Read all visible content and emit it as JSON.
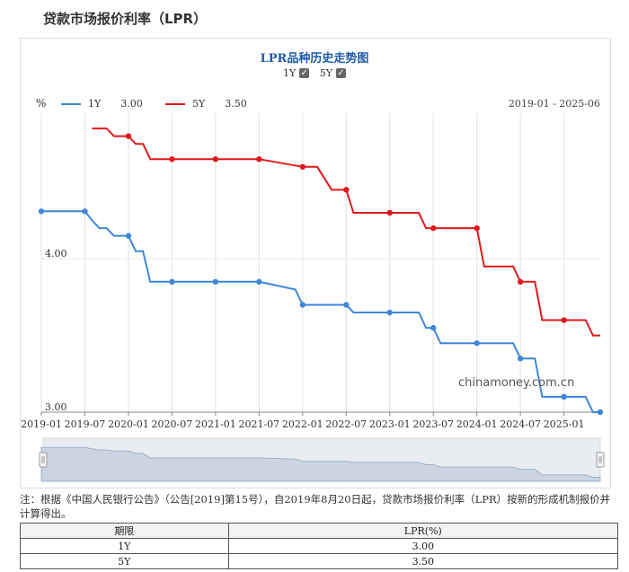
{
  "page": {
    "title": "贷款市场报价利率（LPR）"
  },
  "chart": {
    "title": "LPR品种历史走势图",
    "toggles": [
      {
        "label": "1Y",
        "checked": true
      },
      {
        "label": "5Y",
        "checked": true
      }
    ],
    "unit_label": "%",
    "date_range": "2019-01 - 2025-06",
    "legend": [
      {
        "label": "1Y",
        "value": "3.00",
        "color": "#3f87d6"
      },
      {
        "label": "5Y",
        "value": "3.50",
        "color": "#e0181c"
      }
    ],
    "watermark": "chinamoney.com.cn"
  },
  "chart_data": {
    "type": "line",
    "title": "LPR品种历史走势图",
    "xlabel": "",
    "ylabel": "%",
    "x_ticks": [
      "2019-01",
      "2019-07",
      "2020-01",
      "2020-07",
      "2021-01",
      "2021-07",
      "2022-01",
      "2022-07",
      "2023-01",
      "2023-07",
      "2024-01",
      "2024-07",
      "2025-01"
    ],
    "y_ticks": [
      "3.00",
      "4.00"
    ],
    "ylim": [
      3.0,
      4.95
    ],
    "xlim": [
      "2019-01",
      "2025-06"
    ],
    "grid": "vertical",
    "series": [
      {
        "name": "1Y",
        "color": "#3f87d6",
        "points": [
          [
            "2019-01",
            4.31
          ],
          [
            "2019-07",
            4.31
          ],
          [
            "2019-08",
            4.25
          ],
          [
            "2019-09",
            4.2
          ],
          [
            "2019-10",
            4.2
          ],
          [
            "2019-11",
            4.15
          ],
          [
            "2019-12",
            4.15
          ],
          [
            "2020-01",
            4.15
          ],
          [
            "2020-02",
            4.05
          ],
          [
            "2020-03",
            4.05
          ],
          [
            "2020-04",
            3.85
          ],
          [
            "2020-07",
            3.85
          ],
          [
            "2021-01",
            3.85
          ],
          [
            "2021-07",
            3.85
          ],
          [
            "2021-12",
            3.8
          ],
          [
            "2022-01",
            3.7
          ],
          [
            "2022-07",
            3.7
          ],
          [
            "2022-08",
            3.65
          ],
          [
            "2023-01",
            3.65
          ],
          [
            "2023-05",
            3.65
          ],
          [
            "2023-06",
            3.55
          ],
          [
            "2023-07",
            3.55
          ],
          [
            "2023-08",
            3.45
          ],
          [
            "2024-01",
            3.45
          ],
          [
            "2024-06",
            3.45
          ],
          [
            "2024-07",
            3.35
          ],
          [
            "2024-09",
            3.35
          ],
          [
            "2024-10",
            3.1
          ],
          [
            "2025-01",
            3.1
          ],
          [
            "2025-04",
            3.1
          ],
          [
            "2025-05",
            3.0
          ],
          [
            "2025-06",
            3.0
          ]
        ],
        "markers": [
          "2019-01",
          "2019-07",
          "2020-01",
          "2020-07",
          "2021-01",
          "2021-07",
          "2022-01",
          "2022-07",
          "2023-01",
          "2023-07",
          "2024-01",
          "2024-07",
          "2025-01",
          "2025-06"
        ]
      },
      {
        "name": "5Y",
        "color": "#e0181c",
        "points": [
          [
            "2019-08",
            4.85
          ],
          [
            "2019-10",
            4.85
          ],
          [
            "2019-11",
            4.8
          ],
          [
            "2020-01",
            4.8
          ],
          [
            "2020-02",
            4.75
          ],
          [
            "2020-03",
            4.75
          ],
          [
            "2020-04",
            4.65
          ],
          [
            "2020-07",
            4.65
          ],
          [
            "2021-01",
            4.65
          ],
          [
            "2021-07",
            4.65
          ],
          [
            "2022-01",
            4.6
          ],
          [
            "2022-03",
            4.6
          ],
          [
            "2022-05",
            4.45
          ],
          [
            "2022-07",
            4.45
          ],
          [
            "2022-08",
            4.3
          ],
          [
            "2023-01",
            4.3
          ],
          [
            "2023-05",
            4.3
          ],
          [
            "2023-06",
            4.2
          ],
          [
            "2023-07",
            4.2
          ],
          [
            "2024-01",
            4.2
          ],
          [
            "2024-02",
            3.95
          ],
          [
            "2024-06",
            3.95
          ],
          [
            "2024-07",
            3.85
          ],
          [
            "2024-09",
            3.85
          ],
          [
            "2024-10",
            3.6
          ],
          [
            "2025-01",
            3.6
          ],
          [
            "2025-04",
            3.6
          ],
          [
            "2025-05",
            3.5
          ],
          [
            "2025-06",
            3.5
          ]
        ],
        "markers": [
          "2020-01",
          "2020-07",
          "2021-01",
          "2021-07",
          "2022-01",
          "2022-07",
          "2023-01",
          "2023-07",
          "2024-01",
          "2024-07",
          "2025-01"
        ]
      }
    ]
  },
  "note": "注：根据《中国人民银行公告》（公告[2019]第15号），自2019年8月20日起，贷款市场报价利率（LPR）按新的形成机制报价并计算得出。",
  "table": {
    "headers": [
      "期限",
      "LPR(%)"
    ],
    "rows": [
      [
        "1Y",
        "3.00"
      ],
      [
        "5Y",
        "3.50"
      ]
    ]
  }
}
